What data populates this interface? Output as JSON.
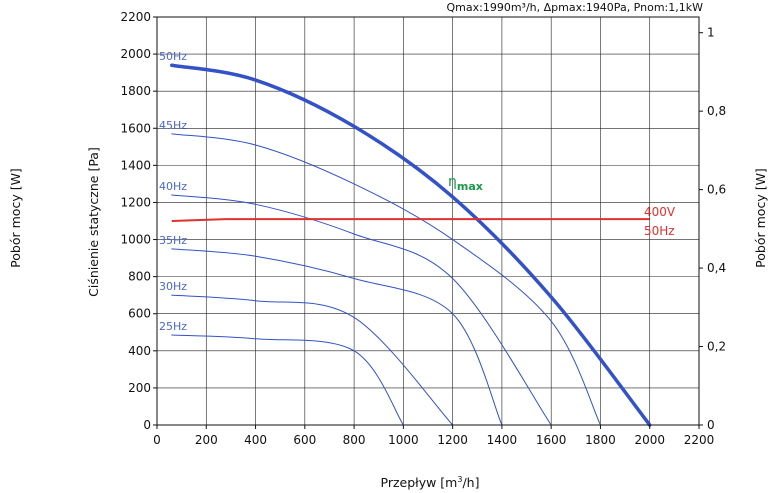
{
  "header_note": "Qmax:1990m³/h, Δpmax:1940Pa, Pnom:1,1kW",
  "chart_data": {
    "type": "line",
    "xlabel_main": "Przepływ [m",
    "xlabel_sup": "3",
    "xlabel_end": "/h]",
    "ylabel_left": "Ciśnienie statyczne [Pa]",
    "ylabel_outer_left": "Pobór mocy [W]",
    "ylabel_right": "Pobór mocy [W]",
    "xlim": [
      0,
      2200
    ],
    "ylim": [
      0,
      2200
    ],
    "x_ticks": [
      0,
      200,
      400,
      600,
      800,
      1000,
      1200,
      1400,
      1600,
      1800,
      2000,
      2200
    ],
    "x_tick_labels": [
      "0",
      "200",
      "400",
      "600",
      "800",
      "1000",
      "1200",
      "1400",
      "1600",
      "1800",
      "2000",
      "2200"
    ],
    "y_ticks": [
      0,
      200,
      400,
      600,
      800,
      1000,
      1200,
      1400,
      1600,
      1800,
      2000,
      2200
    ],
    "y_tick_labels": [
      "0",
      "200",
      "400",
      "600",
      "800",
      "1000",
      "1200",
      "1400",
      "1600",
      "1800",
      "2000",
      "2200"
    ],
    "right_ticks": [
      0,
      0.2,
      0.4,
      0.6,
      0.8,
      1
    ],
    "right_tick_labels": [
      "0",
      "0,2",
      "0,4",
      "0,6",
      "0,8",
      "1"
    ],
    "right_ylim": [
      0,
      1.04
    ],
    "grid": true,
    "series": [
      {
        "name": "50Hz",
        "color": "#3352c8",
        "width": 3.5,
        "x": [
          60,
          400,
          800,
          1200,
          1600,
          2000
        ],
        "y": [
          1940,
          1860,
          1610,
          1230,
          690,
          0
        ]
      },
      {
        "name": "45Hz",
        "color": "#3352c8",
        "width": 1,
        "x": [
          60,
          400,
          800,
          1200,
          1600,
          1800
        ],
        "y": [
          1570,
          1510,
          1300,
          1000,
          560,
          0
        ]
      },
      {
        "name": "40Hz",
        "color": "#3352c8",
        "width": 1,
        "x": [
          60,
          400,
          800,
          1200,
          1600
        ],
        "y": [
          1240,
          1190,
          1030,
          790,
          0
        ]
      },
      {
        "name": "35Hz",
        "color": "#3352c8",
        "width": 1,
        "x": [
          60,
          400,
          800,
          1200,
          1400
        ],
        "y": [
          950,
          910,
          790,
          600,
          0
        ]
      },
      {
        "name": "30Hz",
        "color": "#3352c8",
        "width": 1,
        "x": [
          60,
          400,
          800,
          1200
        ],
        "y": [
          700,
          670,
          580,
          0
        ]
      },
      {
        "name": "25Hz",
        "color": "#3352c8",
        "width": 1,
        "x": [
          60,
          400,
          800,
          1000
        ],
        "y": [
          485,
          465,
          400,
          0
        ]
      }
    ],
    "power_line": {
      "color": "#e03030",
      "x": [
        60,
        280,
        2000
      ],
      "y": [
        1100,
        1110,
        1110
      ]
    },
    "power_label_line1": "400V",
    "power_label_line2": "50Hz",
    "eta_label": "η",
    "eta_sub": "max"
  }
}
